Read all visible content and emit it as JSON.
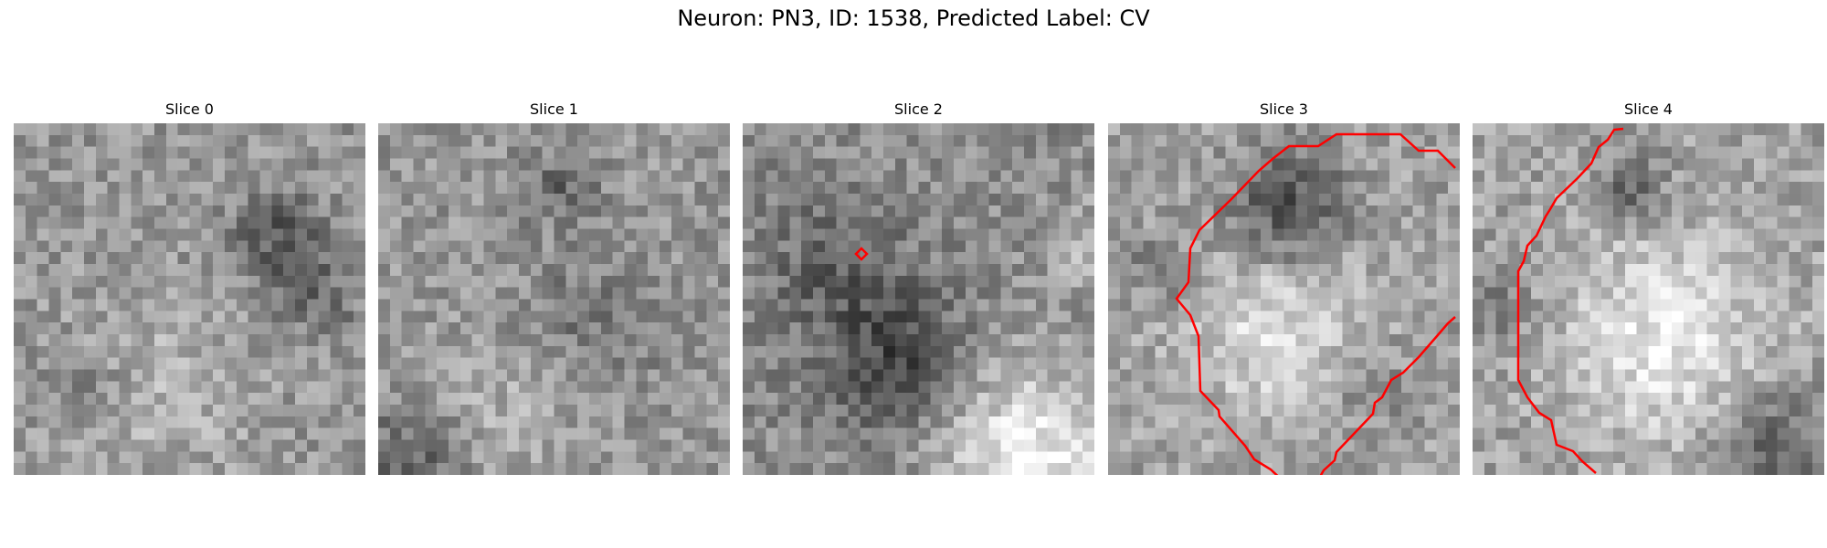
{
  "figure": {
    "title": "Neuron: PN3, ID: 1538, Predicted Label: CV",
    "colormap": "gray",
    "overlay_color": "#ff0000"
  },
  "panels": [
    {
      "title": "Slice 0",
      "overlay": "none"
    },
    {
      "title": "Slice 1",
      "overlay": "none"
    },
    {
      "title": "Slice 2",
      "overlay": "small red diamond marker"
    },
    {
      "title": "Slice 3",
      "overlay": "red segmentation contour"
    },
    {
      "title": "Slice 4",
      "overlay": "red segmentation contour"
    }
  ]
}
